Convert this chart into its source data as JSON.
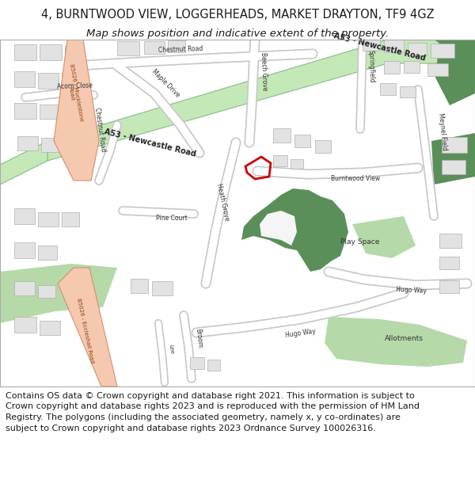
{
  "title_line1": "4, BURNTWOOD VIEW, LOGGERHEADS, MARKET DRAYTON, TF9 4GZ",
  "title_line2": "Map shows position and indicative extent of the property.",
  "footer_text": "Contains OS data © Crown copyright and database right 2021. This information is subject to Crown copyright and database rights 2023 and is reproduced with the permission of HM Land Registry. The polygons (including the associated geometry, namely x, y co-ordinates) are subject to Crown copyright and database rights 2023 Ordnance Survey 100026316.",
  "title_fontsize": 10.5,
  "subtitle_fontsize": 9.5,
  "footer_fontsize": 8.0,
  "fig_width": 6.0,
  "fig_height": 6.25,
  "map_bg_color": "#efefef",
  "header_bg": "#ffffff",
  "footer_bg": "#ffffff",
  "border_color": "#aaaaaa",
  "title_color": "#1a1a1a",
  "road_A53_color": "#c5e8b8",
  "road_A53_border": "#88bb88",
  "road_B5026_color": "#f5c8b0",
  "road_B5026_border": "#e09070",
  "building_color": "#e2e2e2",
  "building_border": "#b0b0b0",
  "green_dark_color": "#5a8f5a",
  "green_light_color": "#b5d9a8",
  "plot_polygon_color": "#cc0000",
  "street_color": "#ffffff",
  "street_border": "#c8c8c8",
  "road_text_color": "#333333"
}
